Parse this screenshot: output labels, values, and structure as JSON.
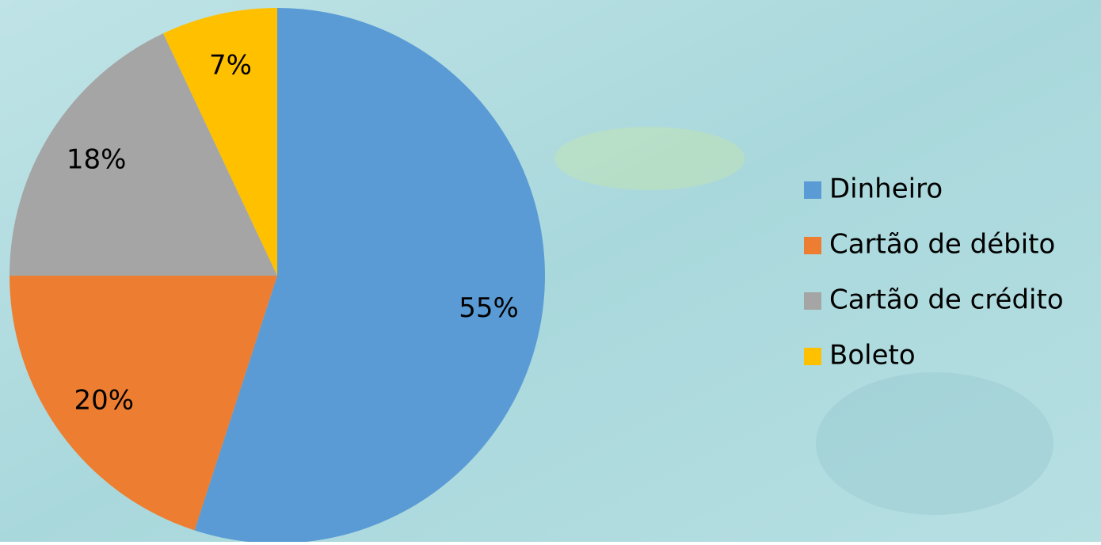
{
  "chart_data": {
    "type": "pie",
    "categories": [
      "Dinheiro",
      "Cartão de débito",
      "Cartão de crédito",
      "Boleto"
    ],
    "values": [
      55,
      20,
      18,
      7
    ],
    "value_labels": [
      "55%",
      "20%",
      "18%",
      "7%"
    ],
    "colors": [
      "#5b9bd5",
      "#ed7d31",
      "#a5a5a5",
      "#ffc000"
    ],
    "legend": "right"
  }
}
